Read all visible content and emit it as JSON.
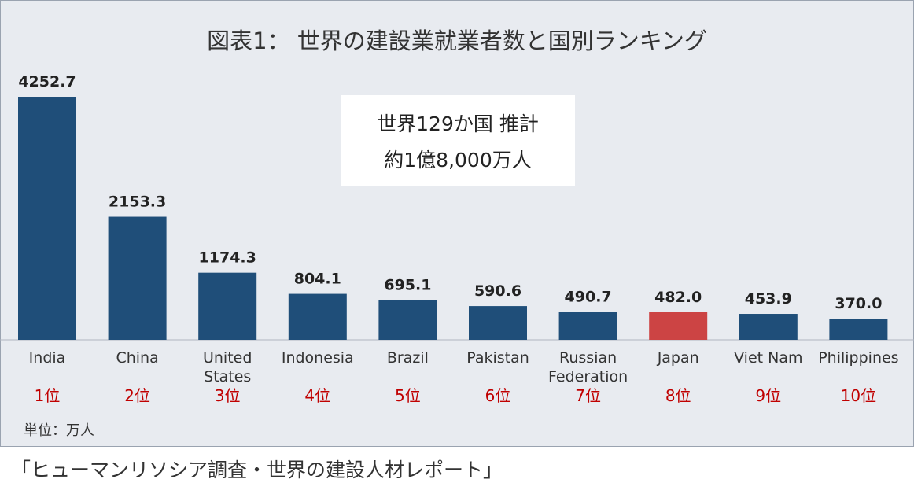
{
  "chart_data": {
    "type": "bar",
    "title": "図表1：  世界の建設業就業者数と国別ランキング",
    "categories": [
      "India",
      "China",
      "United States",
      "Indonesia",
      "Brazil",
      "Pakistan",
      "Russian Federation",
      "Japan",
      "Viet Nam",
      "Philippines"
    ],
    "values": [
      4252.7,
      2153.3,
      1174.3,
      804.1,
      695.1,
      590.6,
      490.7,
      482.0,
      453.9,
      370.0
    ],
    "value_labels": [
      "4252.7",
      "2153.3",
      "1174.3",
      "804.1",
      "695.1",
      "590.6",
      "490.7",
      "482.0",
      "453.9",
      "370.0"
    ],
    "ranks": [
      "1位",
      "2位",
      "3位",
      "4位",
      "5位",
      "6位",
      "7位",
      "8位",
      "9位",
      "10位"
    ],
    "highlight_category": "Japan",
    "annotation": [
      "世界129か国  推計",
      "約1億8,000万人"
    ],
    "unit_label": "単位：万人",
    "grid": false,
    "legend": "none",
    "colors": {
      "bar": "#1f4e79",
      "highlight": "#cc4444",
      "rank_text": "#c00000",
      "panel_bg": "#e8ebf0",
      "annotation_bg": "#ffffff"
    }
  },
  "caption": "「ヒューマンリソシア調査・世界の建設人材レポート」"
}
